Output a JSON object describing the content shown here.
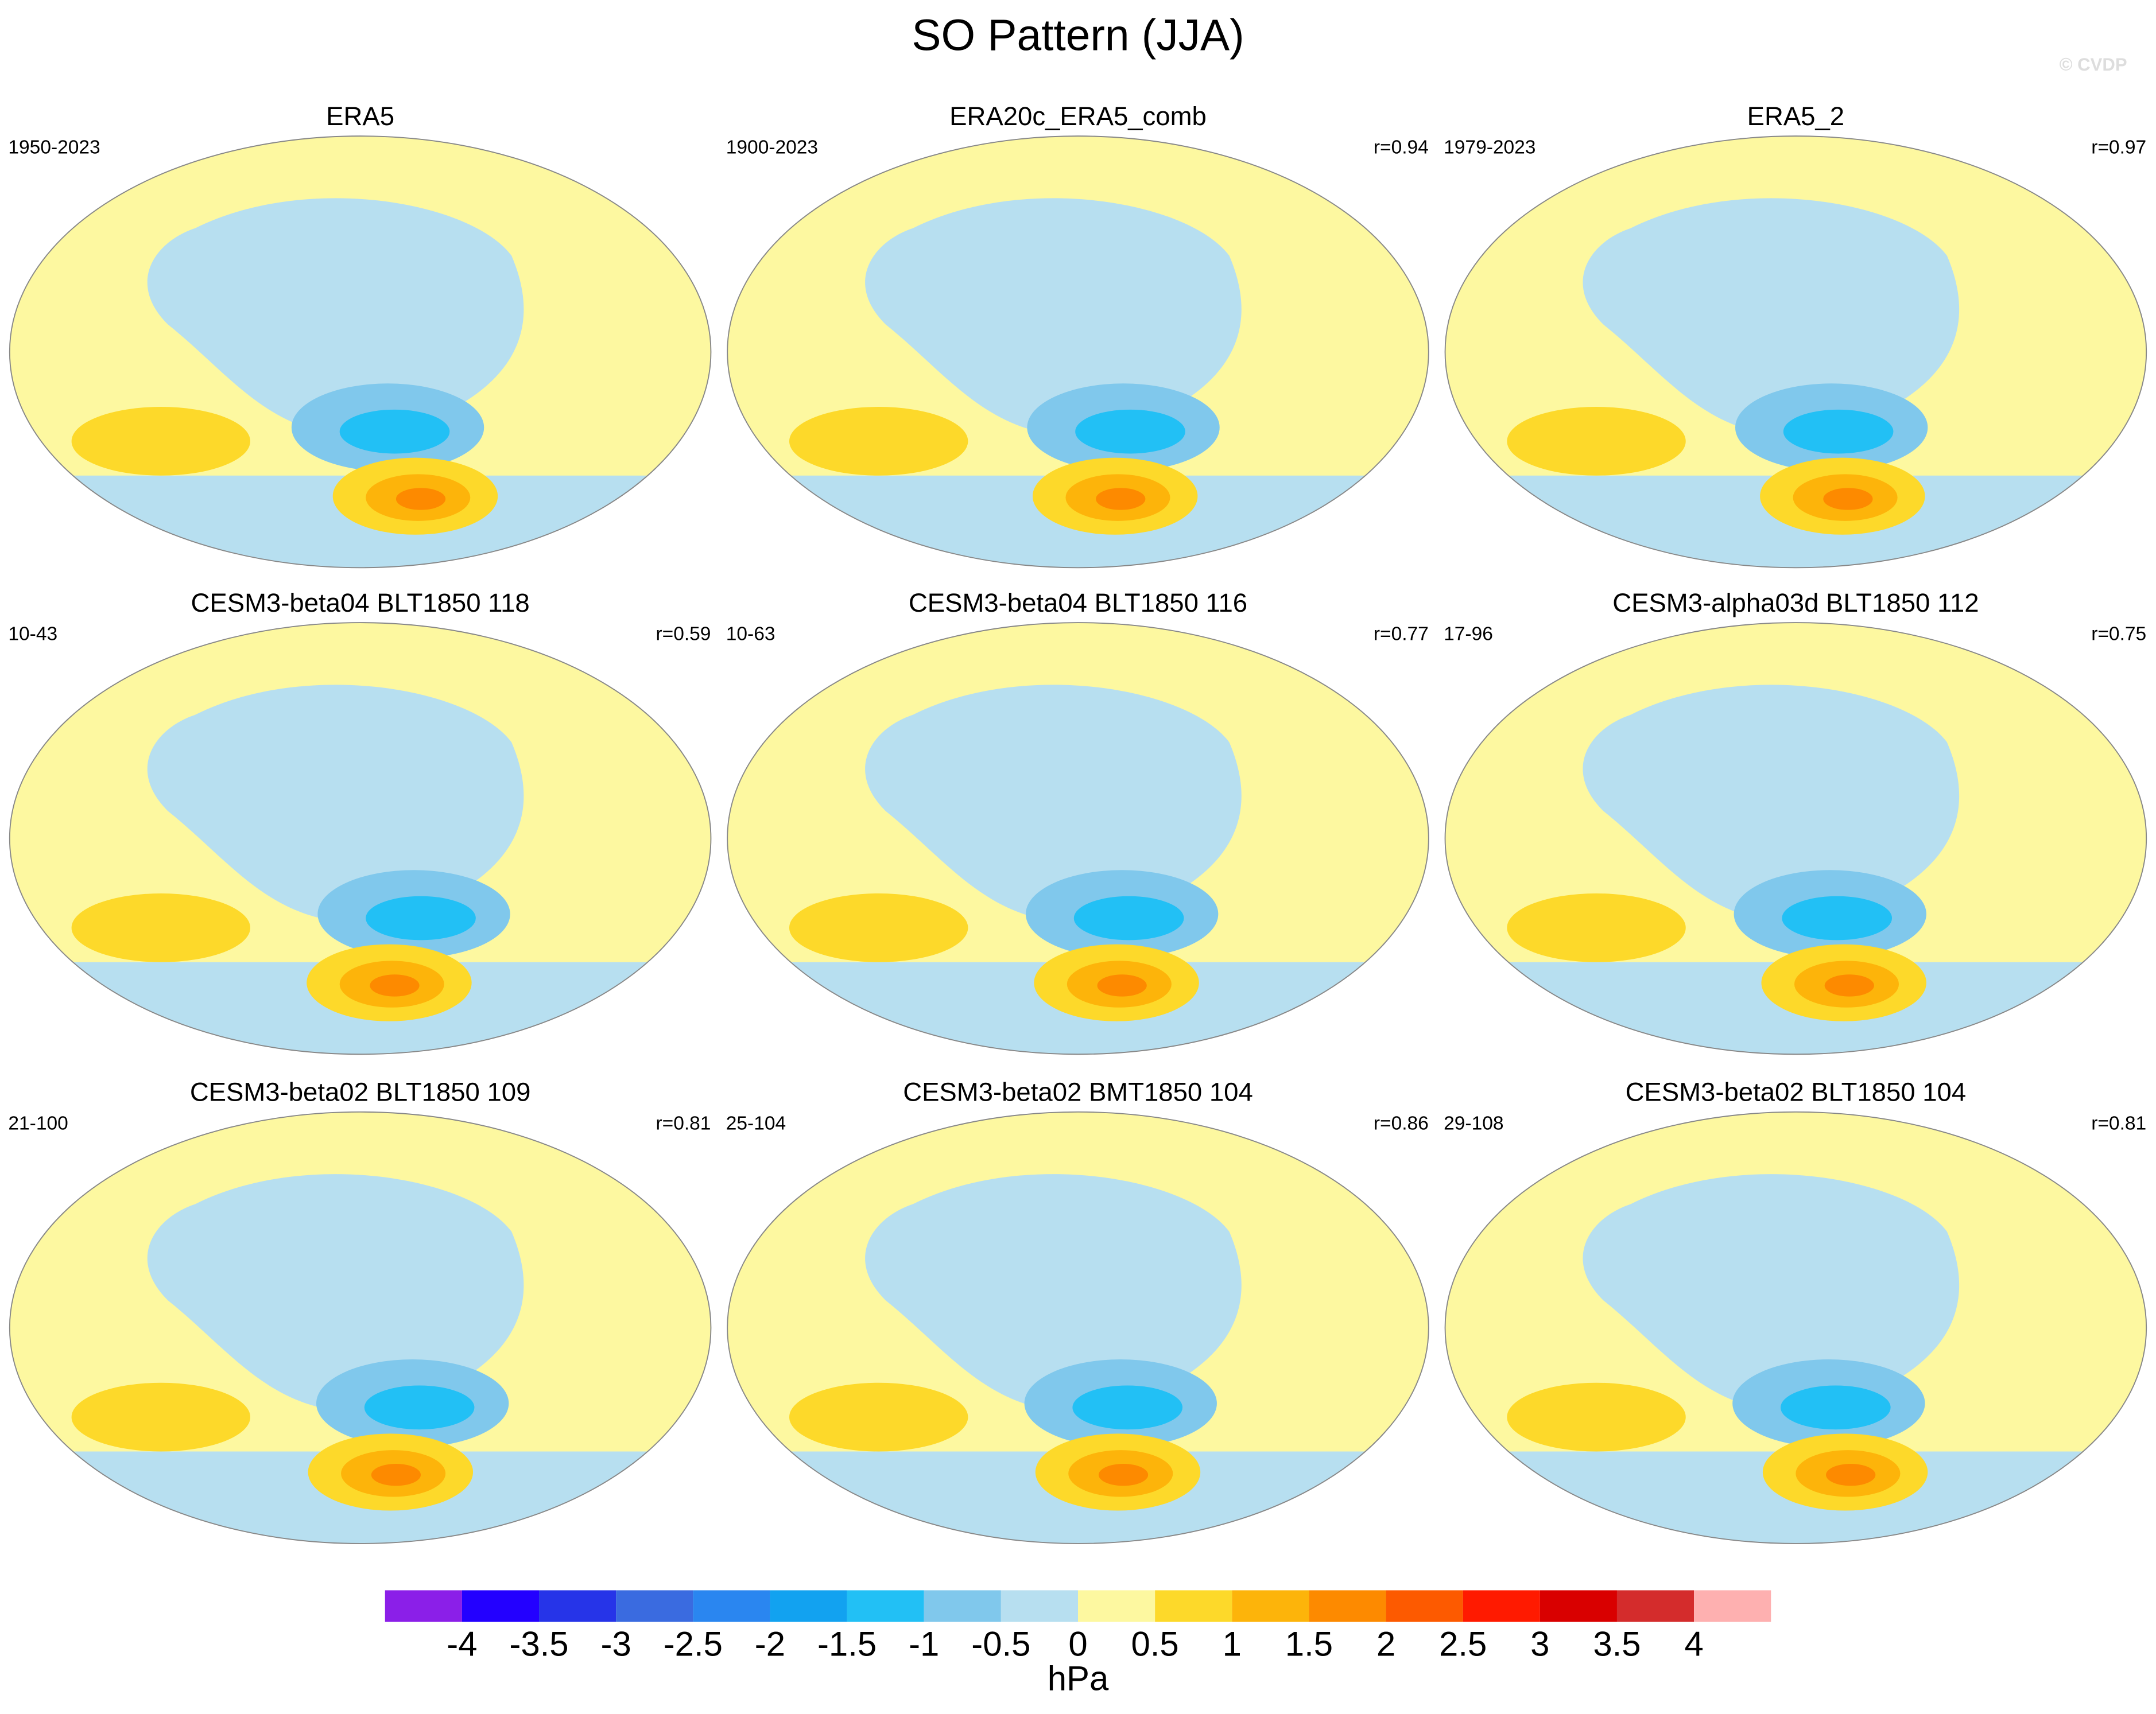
{
  "title": "SO Pattern (JJA)",
  "watermark": "© CVDP",
  "panels": [
    {
      "title": "ERA5",
      "period": "1950-2023"
    },
    {
      "title": "ERA20c_ERA5_comb",
      "period": "1900-2023",
      "r": "r=0.94"
    },
    {
      "title": "ERA5_2",
      "period": "1979-2023",
      "r": "r=0.97"
    },
    {
      "title": "CESM3-beta04 BLT1850 118",
      "period": "10-43",
      "r": "r=0.59"
    },
    {
      "title": "CESM3-beta04 BLT1850 116",
      "period": "10-63",
      "r": "r=0.77"
    },
    {
      "title": "CESM3-alpha03d BLT1850 112",
      "period": "17-96",
      "r": "r=0.75"
    },
    {
      "title": "CESM3-beta02 BLT1850 109",
      "period": "21-100",
      "r": "r=0.81"
    },
    {
      "title": "CESM3-beta02 BMT1850 104",
      "period": "25-104",
      "r": "r=0.86"
    },
    {
      "title": "CESM3-beta02 BLT1850 104",
      "period": "29-108",
      "r": "r=0.81"
    }
  ],
  "colorbar": {
    "levels": [
      -4,
      -3.5,
      -3,
      -2.5,
      -2,
      -1.5,
      -1,
      -0.5,
      0,
      0.5,
      1,
      1.5,
      2,
      2.5,
      3,
      3.5,
      4
    ],
    "colors": [
      "#8b1fe8",
      "#2300ff",
      "#2634e8",
      "#3a6be0",
      "#2a86f0",
      "#12a2f0",
      "#22c0f5",
      "#80c8ec",
      "#b7dff0",
      "#fdf8a0",
      "#fdd92a",
      "#fdb40a",
      "#fd8a00",
      "#fd5a00",
      "#ff1a00",
      "#d90000",
      "#d42c2c",
      "#feb0b0"
    ],
    "units": "hPa"
  }
}
